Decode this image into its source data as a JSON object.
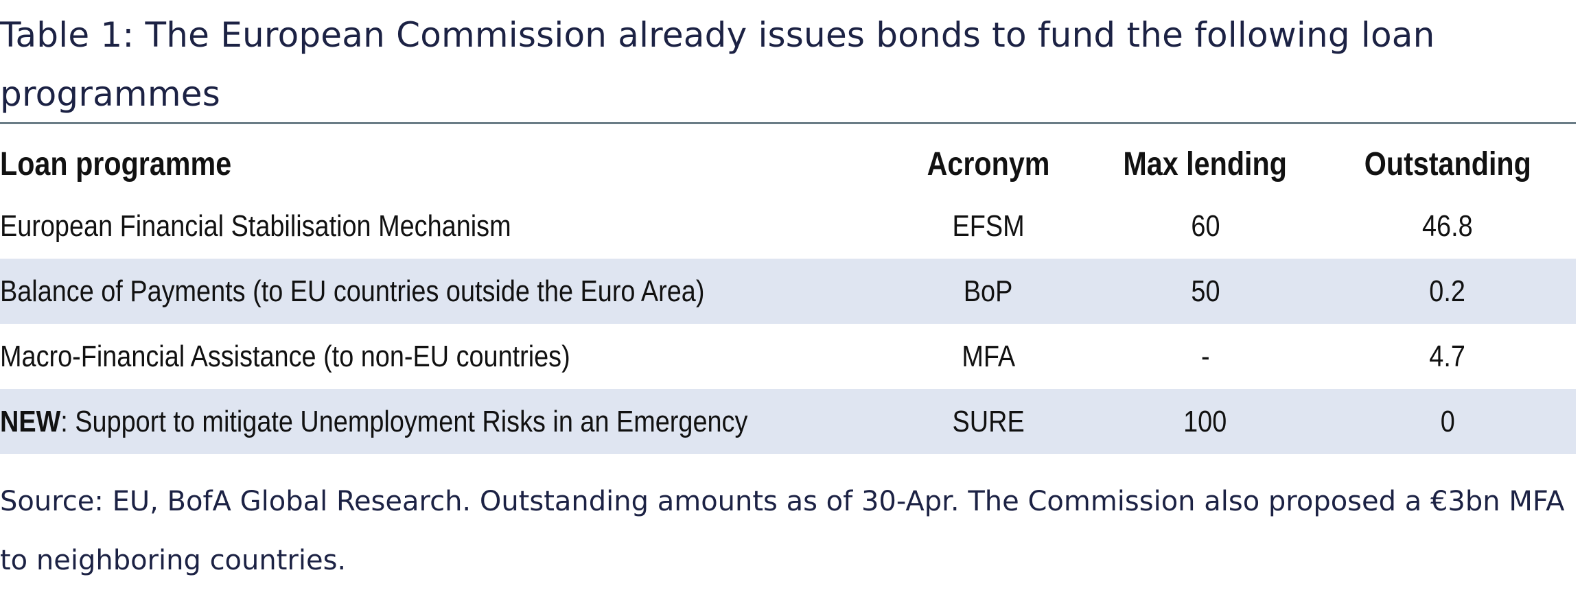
{
  "title": "Table 1: The European Commission already issues bonds to fund the following loan programmes",
  "table": {
    "headers": [
      "Loan programme",
      "Acronym",
      "Max lending",
      "Outstanding"
    ],
    "rows": [
      {
        "prefix": "",
        "programme": "European Financial Stabilisation Mechanism",
        "acronym": "EFSM",
        "max_lending": "60",
        "outstanding": "46.8",
        "shaded": false
      },
      {
        "prefix": "",
        "programme": "Balance of Payments (to EU countries outside the Euro Area)",
        "acronym": "BoP",
        "max_lending": "50",
        "outstanding": "0.2",
        "shaded": true
      },
      {
        "prefix": "",
        "programme": "Macro-Financial Assistance (to non-EU countries)",
        "acronym": "MFA",
        "max_lending": "-",
        "outstanding": "4.7",
        "shaded": false
      },
      {
        "prefix": "NEW",
        "programme": ": Support to mitigate Unemployment Risks in an Emergency",
        "acronym": "SURE",
        "max_lending": "100",
        "outstanding": "0",
        "shaded": true
      }
    ]
  },
  "source": "Source: EU, BofA Global Research. Outstanding amounts as of 30-Apr. The Commission also proposed a €3bn MFA to neighboring countries.",
  "colors": {
    "title_text": "#1c2244",
    "rule": "#6a7c86",
    "row_shade": "#dfe5f1"
  }
}
